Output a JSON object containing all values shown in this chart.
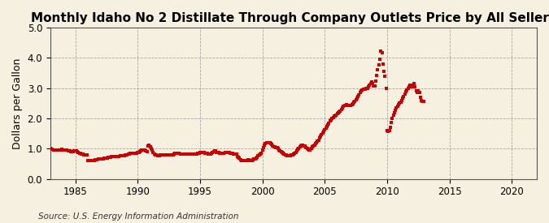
{
  "title": "Monthly Idaho No 2 Distillate Through Company Outlets Price by All Sellers",
  "ylabel": "Dollars per Gallon",
  "source": "Source: U.S. Energy Information Administration",
  "xlim": [
    1983,
    2022
  ],
  "ylim": [
    0.0,
    5.0
  ],
  "xticks": [
    1985,
    1990,
    1995,
    2000,
    2005,
    2010,
    2015,
    2020
  ],
  "yticks": [
    0.0,
    1.0,
    2.0,
    3.0,
    4.0,
    5.0
  ],
  "background_color": "#f5f0e0",
  "marker_color": "#cc0000",
  "marker_size": 3,
  "title_fontsize": 11,
  "label_fontsize": 9,
  "tick_fontsize": 8.5,
  "source_fontsize": 7.5,
  "values": [
    1.0,
    0.99,
    0.98,
    0.97,
    0.97,
    0.97,
    0.96,
    0.96,
    0.96,
    0.96,
    0.97,
    0.98,
    0.97,
    0.97,
    0.97,
    0.96,
    0.95,
    0.94,
    0.93,
    0.92,
    0.91,
    0.9,
    0.91,
    0.92,
    0.93,
    0.93,
    0.91,
    0.88,
    0.86,
    0.85,
    0.83,
    0.82,
    0.8,
    0.79,
    0.79,
    0.8,
    0.62,
    0.61,
    0.6,
    0.6,
    0.6,
    0.61,
    0.62,
    0.63,
    0.63,
    0.64,
    0.65,
    0.66,
    0.65,
    0.65,
    0.66,
    0.67,
    0.68,
    0.68,
    0.69,
    0.7,
    0.71,
    0.72,
    0.73,
    0.74,
    0.74,
    0.74,
    0.74,
    0.74,
    0.74,
    0.74,
    0.75,
    0.76,
    0.76,
    0.77,
    0.77,
    0.78,
    0.79,
    0.8,
    0.81,
    0.82,
    0.83,
    0.84,
    0.84,
    0.84,
    0.84,
    0.84,
    0.84,
    0.85,
    0.87,
    0.89,
    0.91,
    0.93,
    0.95,
    0.96,
    0.96,
    0.95,
    0.93,
    0.91,
    1.08,
    1.13,
    1.06,
    1.02,
    0.97,
    0.88,
    0.82,
    0.8,
    0.79,
    0.78,
    0.78,
    0.78,
    0.79,
    0.8,
    0.8,
    0.8,
    0.8,
    0.8,
    0.8,
    0.8,
    0.8,
    0.8,
    0.8,
    0.8,
    0.81,
    0.82,
    0.84,
    0.85,
    0.86,
    0.85,
    0.84,
    0.83,
    0.83,
    0.82,
    0.82,
    0.82,
    0.82,
    0.83,
    0.83,
    0.83,
    0.83,
    0.83,
    0.83,
    0.83,
    0.83,
    0.83,
    0.83,
    0.83,
    0.84,
    0.86,
    0.88,
    0.89,
    0.89,
    0.88,
    0.87,
    0.86,
    0.85,
    0.84,
    0.83,
    0.82,
    0.83,
    0.85,
    0.88,
    0.91,
    0.94,
    0.92,
    0.89,
    0.88,
    0.87,
    0.86,
    0.85,
    0.84,
    0.84,
    0.86,
    0.88,
    0.89,
    0.89,
    0.88,
    0.87,
    0.86,
    0.85,
    0.84,
    0.83,
    0.82,
    0.82,
    0.83,
    0.74,
    0.71,
    0.68,
    0.64,
    0.61,
    0.6,
    0.6,
    0.6,
    0.61,
    0.62,
    0.63,
    0.64,
    0.62,
    0.62,
    0.62,
    0.63,
    0.65,
    0.67,
    0.7,
    0.73,
    0.76,
    0.79,
    0.82,
    0.85,
    0.96,
    1.05,
    1.13,
    1.17,
    1.19,
    1.2,
    1.2,
    1.19,
    1.17,
    1.14,
    1.1,
    1.07,
    1.06,
    1.05,
    1.04,
    1.01,
    0.97,
    0.94,
    0.91,
    0.88,
    0.85,
    0.82,
    0.8,
    0.79,
    0.78,
    0.78,
    0.78,
    0.78,
    0.79,
    0.8,
    0.82,
    0.85,
    0.89,
    0.93,
    0.98,
    1.02,
    1.06,
    1.09,
    1.11,
    1.12,
    1.1,
    1.08,
    1.05,
    1.02,
    0.99,
    0.97,
    0.97,
    1.0,
    1.06,
    1.1,
    1.13,
    1.17,
    1.2,
    1.24,
    1.29,
    1.35,
    1.41,
    1.47,
    1.52,
    1.57,
    1.63,
    1.69,
    1.74,
    1.79,
    1.85,
    1.91,
    1.96,
    2.0,
    2.04,
    2.07,
    2.09,
    2.12,
    2.15,
    2.18,
    2.21,
    2.25,
    2.29,
    2.35,
    2.39,
    2.42,
    2.44,
    2.45,
    2.44,
    2.42,
    2.42,
    2.44,
    2.46,
    2.49,
    2.53,
    2.57,
    2.62,
    2.67,
    2.73,
    2.79,
    2.86,
    2.92,
    2.95,
    2.97,
    2.97,
    2.97,
    2.98,
    3.0,
    3.04,
    3.1,
    3.16,
    3.21,
    3.15,
    3.08,
    3.08,
    3.22,
    3.43,
    3.6,
    3.78,
    3.95,
    4.22,
    4.18,
    3.8,
    3.55,
    3.4,
    3.0,
    1.6,
    1.56,
    1.6,
    1.72,
    1.87,
    2.0,
    2.1,
    2.18,
    2.27,
    2.35,
    2.4,
    2.45,
    2.5,
    2.54,
    2.6,
    2.66,
    2.73,
    2.8,
    2.88,
    2.94,
    2.99,
    3.05,
    3.1,
    3.07,
    3.05,
    3.1,
    3.15,
    3.05,
    2.9,
    2.85,
    2.9,
    2.85,
    2.7,
    2.6,
    2.55,
    2.55
  ],
  "start_year": 1983,
  "start_month": 1
}
